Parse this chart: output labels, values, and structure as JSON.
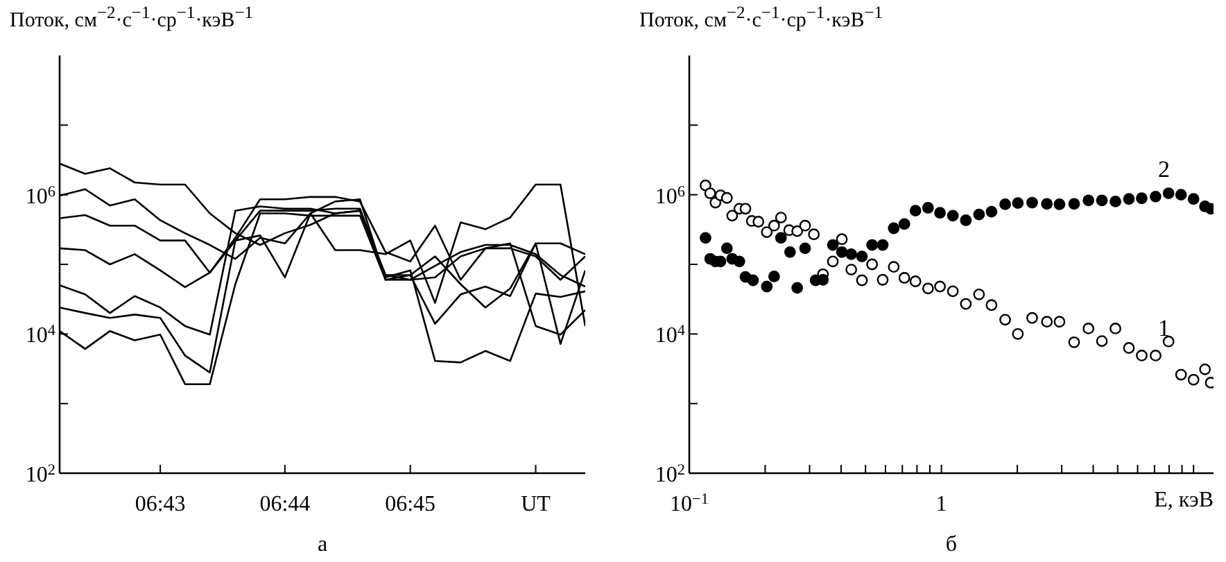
{
  "chart_data": [
    {
      "type": "line",
      "ylabel": "Поток, см$^{−2}$·с$^{−1}$·ср$^{−1}$·кэВ$^{−1}$",
      "annotations": [
        "а"
      ],
      "marker": "none",
      "line_style": "solid",
      "log": "y",
      "x": [
        6.7033,
        6.7067,
        6.71,
        6.7133,
        6.7167,
        6.72,
        6.7233,
        6.7267,
        6.73,
        6.7333,
        6.7367,
        6.74,
        6.7433,
        6.7467,
        6.75,
        6.7533,
        6.7567,
        6.76,
        6.7633,
        6.7667,
        6.77,
        6.7733
      ],
      "xlim": [
        6.7033,
        6.7733
      ],
      "xticks": [
        {
          "value": 6.7167,
          "label": "06:43"
        },
        {
          "value": 6.7333,
          "label": "06:44"
        },
        {
          "value": 6.75,
          "label": "06:45"
        },
        {
          "value": 6.7667,
          "label": "UT"
        }
      ],
      "ylim": [
        100,
        100000000
      ],
      "yticks": [
        {
          "value": 100,
          "label": "10$^{2}$"
        },
        {
          "value": 1000,
          "label": null
        },
        {
          "value": 10000,
          "label": "10$^{4}$"
        },
        {
          "value": 100000,
          "label": null
        },
        {
          "value": 1000000,
          "label": "10$^{6}$"
        },
        {
          "value": 10000000,
          "label": null
        }
      ],
      "series": [
        {
          "color": "#000000",
          "values": [
            2800000,
            2000000,
            2400000,
            1500000,
            1400000,
            1400000,
            540000,
            280000,
            190000,
            280000,
            370000,
            540000,
            590000,
            70000,
            60000,
            95000,
            150000,
            190000,
            190000,
            140000,
            70000,
            48000
          ]
        },
        {
          "color": "#000000",
          "values": [
            970000,
            1200000,
            700000,
            860000,
            430000,
            280000,
            190000,
            120000,
            240000,
            200000,
            540000,
            800000,
            860000,
            60000,
            60000,
            65000,
            130000,
            170000,
            170000,
            130000,
            60000,
            130000
          ]
        },
        {
          "color": "#000000",
          "values": [
            460000,
            510000,
            360000,
            360000,
            220000,
            220000,
            76000,
            240000,
            860000,
            860000,
            930000,
            930000,
            800000,
            150000,
            110000,
            360000,
            60000,
            170000,
            200000,
            13000,
            9800,
            22000
          ]
        },
        {
          "color": "#000000",
          "values": [
            170000,
            160000,
            100000,
            140000,
            82000,
            47000,
            76000,
            220000,
            260000,
            65000,
            540000,
            160000,
            160000,
            140000,
            220000,
            28000,
            400000,
            320000,
            470000,
            1400000,
            1400000,
            13000
          ]
        },
        {
          "color": "#000000",
          "values": [
            50000,
            37000,
            20000,
            35000,
            24000,
            13000,
            9800,
            590000,
            680000,
            630000,
            630000,
            540000,
            590000,
            70000,
            70000,
            14000,
            37000,
            48000,
            35000,
            200000,
            200000,
            140000
          ]
        },
        {
          "color": "#000000",
          "values": [
            24000,
            20000,
            17000,
            19000,
            17000,
            4900,
            2800,
            220000,
            590000,
            590000,
            590000,
            630000,
            630000,
            65000,
            82000,
            4100,
            3900,
            5700,
            4100,
            38000,
            34000,
            41000
          ]
        },
        {
          "color": "#000000",
          "values": [
            11000,
            6100,
            11000,
            8100,
            9800,
            1900,
            1900,
            52000,
            540000,
            540000,
            500000,
            500000,
            500000,
            60000,
            70000,
            130000,
            52000,
            24000,
            45000,
            200000,
            7200,
            82000
          ]
        }
      ]
    },
    {
      "type": "scatter",
      "ylabel": "Поток, см$^{−2}$·с$^{−1}$·ср$^{−1}$·кэВ$^{−1}$",
      "xlabel": "E, кэВ",
      "marker": "circle",
      "log": "xy",
      "annotations": [
        "б"
      ],
      "xlim": [
        0.1,
        12
      ],
      "xticks": [
        {
          "value": 0.1,
          "label": "10$^{−1}$"
        },
        {
          "value": 0.2,
          "label": null
        },
        {
          "value": 0.3,
          "label": null
        },
        {
          "value": 0.4,
          "label": null
        },
        {
          "value": 0.5,
          "label": null
        },
        {
          "value": 0.6,
          "label": null
        },
        {
          "value": 0.7,
          "label": null
        },
        {
          "value": 0.8,
          "label": null
        },
        {
          "value": 0.9,
          "label": null
        },
        1,
        {
          "value": 2,
          "label": null
        },
        {
          "value": 3,
          "label": null
        },
        {
          "value": 4,
          "label": null
        },
        {
          "value": 5,
          "label": null
        },
        {
          "value": 6,
          "label": null
        },
        {
          "value": 7,
          "label": null
        },
        {
          "value": 8,
          "label": null
        },
        {
          "value": 9,
          "label": null
        },
        {
          "value": 10,
          "label": null
        }
      ],
      "ylim": [
        100,
        100000000
      ],
      "yticks": [
        {
          "value": 100,
          "label": "10$^{2}$"
        },
        {
          "value": 1000,
          "label": null
        },
        {
          "value": 10000,
          "label": "10$^{4}$"
        },
        {
          "value": 100000,
          "label": null
        },
        {
          "value": 1000000,
          "label": "10$^{6}$"
        },
        {
          "value": 10000000,
          "label": null
        }
      ],
      "series": [
        {
          "name": "1",
          "color": "#000000",
          "x": [
            0.116,
            0.121,
            0.127,
            0.133,
            0.141,
            0.148,
            0.158,
            0.167,
            0.177,
            0.188,
            0.203,
            0.217,
            0.231,
            0.249,
            0.268,
            0.288,
            0.312,
            0.339,
            0.371,
            0.403,
            0.439,
            0.484,
            0.531,
            0.585,
            0.647,
            0.713,
            0.789,
            0.885,
            0.987,
            1.11,
            1.25,
            1.41,
            1.58,
            1.79,
            2.01,
            2.29,
            2.62,
            2.94,
            3.36,
            3.83,
            4.33,
            4.9,
            5.54,
            6.23,
            7.07,
            7.96,
            8.92,
            10,
            11.1,
            11.7
          ],
          "values": [
            1360000,
            1050000,
            770000,
            980000,
            900000,
            500000,
            630000,
            630000,
            420000,
            410000,
            290000,
            360000,
            470000,
            310000,
            300000,
            360000,
            270000,
            72000,
            110000,
            230000,
            84000,
            59000,
            100000,
            60000,
            92000,
            64000,
            57000,
            45000,
            48000,
            41000,
            27000,
            37000,
            26000,
            16000,
            10000,
            17000,
            15000,
            15000,
            7600,
            12000,
            7900,
            12000,
            6300,
            4900,
            4900,
            7800,
            2600,
            2200,
            3100,
            2000
          ]
        },
        {
          "name": "2",
          "color": "#000000",
          "x": [
            0.116,
            0.121,
            0.127,
            0.133,
            0.141,
            0.148,
            0.158,
            0.167,
            0.179,
            0.203,
            0.217,
            0.231,
            0.251,
            0.268,
            0.288,
            0.317,
            0.339,
            0.371,
            0.403,
            0.439,
            0.484,
            0.531,
            0.585,
            0.647,
            0.713,
            0.789,
            0.885,
            0.987,
            1.11,
            1.25,
            1.41,
            1.58,
            1.79,
            2.01,
            2.29,
            2.62,
            2.94,
            3.36,
            3.83,
            4.33,
            4.9,
            5.54,
            6.23,
            7.07,
            7.96,
            8.92,
            10,
            11.1,
            11.7
          ],
          "values": [
            240000,
            120000,
            110000,
            110000,
            170000,
            120000,
            110000,
            66000,
            59000,
            48000,
            67000,
            240000,
            150000,
            46000,
            170000,
            59000,
            60000,
            190000,
            150000,
            140000,
            130000,
            190000,
            190000,
            330000,
            380000,
            590000,
            650000,
            550000,
            500000,
            430000,
            520000,
            570000,
            730000,
            760000,
            770000,
            740000,
            730000,
            740000,
            830000,
            830000,
            800000,
            870000,
            890000,
            940000,
            1050000,
            1000000,
            870000,
            680000,
            630000
          ]
        }
      ]
    }
  ]
}
